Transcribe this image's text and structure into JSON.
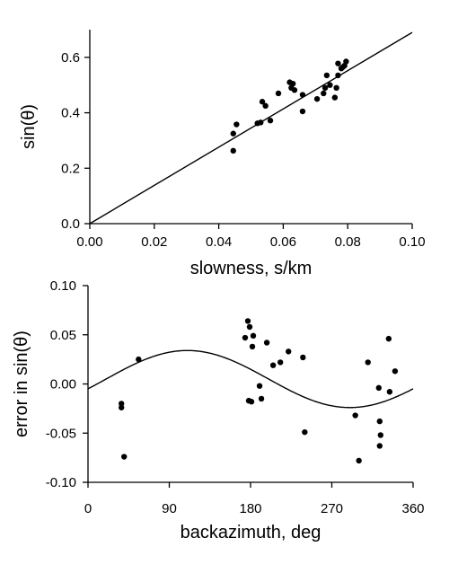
{
  "chart_data": [
    {
      "type": "scatter",
      "xlabel": "slowness, s/km",
      "ylabel": "sin(θ)",
      "xlim": [
        0.0,
        0.1
      ],
      "ylim": [
        0.0,
        0.7
      ],
      "x_ticks": [
        "0.00",
        "0.02",
        "0.04",
        "0.06",
        "0.08",
        "0.10"
      ],
      "y_ticks": [
        "0.0",
        "0.2",
        "0.4",
        "0.6"
      ],
      "grid": false,
      "points": [
        {
          "x": 0.0445,
          "y": 0.325
        },
        {
          "x": 0.0445,
          "y": 0.263
        },
        {
          "x": 0.0455,
          "y": 0.358
        },
        {
          "x": 0.052,
          "y": 0.362
        },
        {
          "x": 0.053,
          "y": 0.365
        },
        {
          "x": 0.0535,
          "y": 0.44
        },
        {
          "x": 0.0545,
          "y": 0.425
        },
        {
          "x": 0.056,
          "y": 0.372
        },
        {
          "x": 0.0585,
          "y": 0.47
        },
        {
          "x": 0.062,
          "y": 0.51
        },
        {
          "x": 0.0625,
          "y": 0.49
        },
        {
          "x": 0.063,
          "y": 0.505
        },
        {
          "x": 0.0635,
          "y": 0.482
        },
        {
          "x": 0.066,
          "y": 0.405
        },
        {
          "x": 0.066,
          "y": 0.465
        },
        {
          "x": 0.0705,
          "y": 0.45
        },
        {
          "x": 0.0725,
          "y": 0.47
        },
        {
          "x": 0.073,
          "y": 0.49
        },
        {
          "x": 0.0735,
          "y": 0.535
        },
        {
          "x": 0.0745,
          "y": 0.5
        },
        {
          "x": 0.076,
          "y": 0.455
        },
        {
          "x": 0.0765,
          "y": 0.49
        },
        {
          "x": 0.077,
          "y": 0.535
        },
        {
          "x": 0.077,
          "y": 0.578
        },
        {
          "x": 0.078,
          "y": 0.56
        },
        {
          "x": 0.0785,
          "y": 0.565
        },
        {
          "x": 0.079,
          "y": 0.57
        },
        {
          "x": 0.0795,
          "y": 0.585
        }
      ],
      "fit_line": {
        "slope": 6.9,
        "intercept": 0.0
      }
    },
    {
      "type": "scatter",
      "xlabel": "backazimuth, deg",
      "ylabel": "error in sin(θ)",
      "xlim": [
        0,
        360
      ],
      "ylim": [
        -0.1,
        0.1
      ],
      "x_ticks": [
        "0",
        "90",
        "180",
        "270",
        "360"
      ],
      "y_ticks": [
        "0.10",
        "0.05",
        "0.00",
        "-0.05",
        "-0.10"
      ],
      "grid": false,
      "points": [
        {
          "x": 37,
          "y": -0.02
        },
        {
          "x": 37,
          "y": -0.024
        },
        {
          "x": 40,
          "y": -0.074
        },
        {
          "x": 56,
          "y": 0.025
        },
        {
          "x": 174,
          "y": 0.047
        },
        {
          "x": 177,
          "y": 0.064
        },
        {
          "x": 178,
          "y": -0.017
        },
        {
          "x": 179,
          "y": 0.058
        },
        {
          "x": 181,
          "y": -0.018
        },
        {
          "x": 182,
          "y": 0.038
        },
        {
          "x": 183,
          "y": 0.049
        },
        {
          "x": 190,
          "y": -0.002
        },
        {
          "x": 192,
          "y": -0.015
        },
        {
          "x": 198,
          "y": 0.042
        },
        {
          "x": 205,
          "y": 0.019
        },
        {
          "x": 213,
          "y": 0.022
        },
        {
          "x": 222,
          "y": 0.033
        },
        {
          "x": 238,
          "y": 0.027
        },
        {
          "x": 240,
          "y": -0.049
        },
        {
          "x": 296,
          "y": -0.032
        },
        {
          "x": 300,
          "y": -0.078
        },
        {
          "x": 310,
          "y": 0.022
        },
        {
          "x": 322,
          "y": -0.004
        },
        {
          "x": 323,
          "y": -0.038
        },
        {
          "x": 324,
          "y": -0.052
        },
        {
          "x": 323,
          "y": -0.063
        },
        {
          "x": 333,
          "y": 0.046
        },
        {
          "x": 334,
          "y": -0.008
        },
        {
          "x": 340,
          "y": 0.013
        }
      ],
      "fit_curve": {
        "mean": 0.005,
        "amplitude": 0.029,
        "peak_at_deg": 110
      }
    }
  ]
}
